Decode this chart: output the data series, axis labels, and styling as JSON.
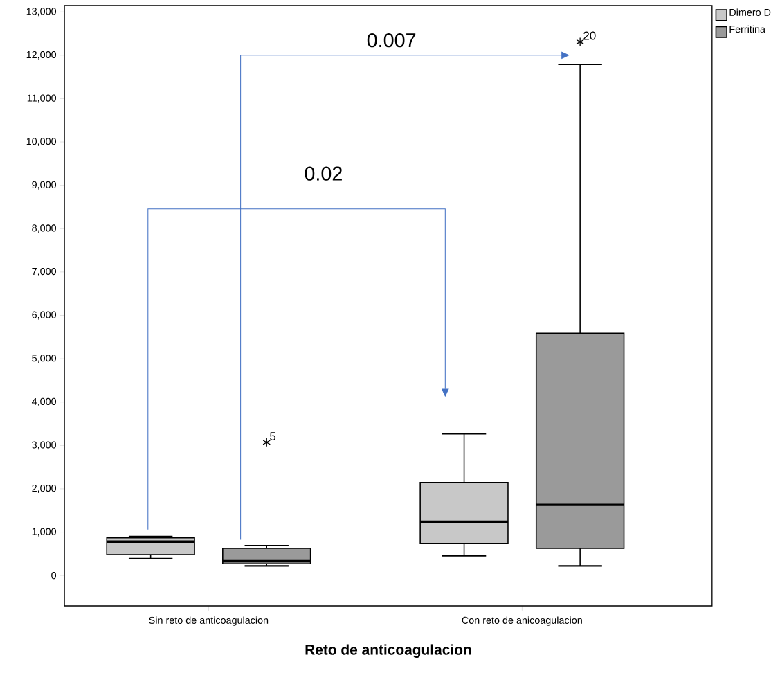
{
  "chart_data": {
    "type": "box",
    "categories": [
      "Sin reto de anticoagulacion",
      "Con reto de anicoagulacion"
    ],
    "xlabel": "Reto de anticoagulacion",
    "ylim": [
      -700,
      13150
    ],
    "yticks": [
      0,
      {
        "value": 1000,
        "label": "1,000"
      },
      {
        "value": 2000,
        "label": "2,000"
      },
      {
        "value": 3000,
        "label": "3,000"
      },
      {
        "value": 4000,
        "label": "4,000"
      },
      {
        "value": 5000,
        "label": "5,000"
      },
      {
        "value": 6000,
        "label": "6,000"
      },
      {
        "value": 7000,
        "label": "7,000"
      },
      {
        "value": 8000,
        "label": "8,000"
      },
      {
        "value": 9000,
        "label": "9,000"
      },
      {
        "value": 10000,
        "label": "10,000"
      },
      {
        "value": 11000,
        "label": "11,000"
      },
      {
        "value": 12000,
        "label": "12,000"
      },
      {
        "value": 13000,
        "label": "13,000"
      }
    ],
    "legend": "top right",
    "series": [
      {
        "name": "Dimero D",
        "color": "#c8c8c8",
        "boxes": [
          {
            "low": 390,
            "q1": 480,
            "median": 780,
            "q3": 870,
            "high": 900
          },
          {
            "low": 455,
            "q1": 740,
            "median": 1240,
            "q3": 2145,
            "high": 3270
          }
        ]
      },
      {
        "name": "Ferritina",
        "color": "#9a9a9a",
        "boxes": [
          {
            "low": 220,
            "q1": 270,
            "median": 330,
            "q3": 626,
            "high": 690,
            "outliers": [
              3070
            ]
          },
          {
            "low": 220,
            "q1": 625,
            "median": 1630,
            "q3": 5590,
            "high": 11790,
            "outliers": [
              12310
            ]
          }
        ]
      }
    ],
    "annotations": [
      "0.02",
      "0.007",
      "5",
      "20"
    ]
  }
}
